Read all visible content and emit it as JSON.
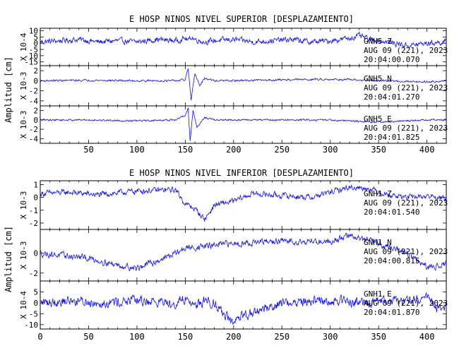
{
  "chart_data": [
    {
      "type": "line",
      "title": "E HOSP NINOS NIVEL SUPERIOR [DESPLAZAMIENTO]",
      "ylabel": "Amplitud [cm]",
      "xlim": [
        0,
        420
      ],
      "x_ticks": [
        50,
        100,
        150,
        200,
        250,
        300,
        350,
        400
      ],
      "x_tick_labels": [
        "50",
        "100",
        "150",
        "200",
        "250",
        "300",
        "350",
        "400"
      ],
      "line_color": "#1010ee",
      "series": [
        {
          "name": "GNH5 Z",
          "channel_label": "GNH5   Z",
          "date_label": "AUG 09 (221), 2023",
          "time_label": "20:04:00.070",
          "scale_label": "X 10-4",
          "ylim": [
            -18,
            12
          ],
          "y_ticks": [
            10,
            5,
            0,
            -5,
            -10,
            -15
          ],
          "y_tick_labels": [
            "10",
            "5",
            "0",
            "-5",
            "-10",
            "-15"
          ],
          "x": [
            0,
            20,
            40,
            60,
            80,
            100,
            120,
            140,
            150,
            153,
            156,
            160,
            165,
            170,
            180,
            200,
            220,
            240,
            260,
            280,
            300,
            320,
            330,
            340,
            360,
            380,
            400,
            420
          ],
          "y": [
            1,
            2,
            3,
            1,
            2,
            1,
            3,
            2,
            4,
            2,
            5,
            3,
            2,
            1,
            2,
            3,
            1,
            2,
            3,
            1,
            2,
            4,
            6,
            3,
            1,
            -2,
            0,
            1
          ],
          "noise": 3.5
        },
        {
          "name": "GNH5 N",
          "channel_label": "GNH5   N",
          "date_label": "AUG 09 (221), 2023",
          "time_label": "20:04:01.270",
          "scale_label": "X 10-3",
          "ylim": [
            -5,
            3
          ],
          "y_ticks": [
            2,
            0,
            -2,
            -4
          ],
          "y_tick_labels": [
            "2",
            "0",
            "-2",
            "-4"
          ],
          "x": [
            0,
            50,
            100,
            140,
            150,
            153,
            156,
            160,
            165,
            170,
            180,
            200,
            250,
            300,
            350,
            400,
            420
          ],
          "y": [
            0,
            0.1,
            0,
            0,
            0.2,
            2.5,
            -4,
            1.5,
            -1,
            0.5,
            0,
            0,
            0.2,
            0.3,
            0,
            -0.2,
            0
          ],
          "noise": 0.3
        },
        {
          "name": "GNH5 E",
          "channel_label": "GNH5   E",
          "date_label": "AUG 09 (221), 2023",
          "time_label": "20:04:01.825",
          "scale_label": "X 10-3",
          "ylim": [
            -5,
            3
          ],
          "y_ticks": [
            2,
            0,
            -2,
            -4
          ],
          "y_tick_labels": [
            "2",
            "0",
            "-2",
            "-4"
          ],
          "x": [
            0,
            50,
            100,
            140,
            150,
            153,
            155,
            158,
            162,
            170,
            180,
            200,
            250,
            300,
            350,
            400,
            420
          ],
          "y": [
            0,
            0,
            -0.2,
            0,
            1,
            2.5,
            -4.5,
            2,
            -1.5,
            0.5,
            0,
            0,
            0,
            0,
            -0.5,
            0,
            0
          ],
          "noise": 0.3
        }
      ]
    },
    {
      "type": "line",
      "title": "E HOSP NINOS NIVEL INFERIOR [DESPLAZAMIENTO]",
      "ylabel": "Amplitud [cm]",
      "xlim": [
        0,
        420
      ],
      "x_ticks": [
        0,
        50,
        100,
        150,
        200,
        250,
        300,
        350,
        400
      ],
      "x_tick_labels": [
        "0",
        "50",
        "100",
        "150",
        "200",
        "250",
        "300",
        "350",
        "400"
      ],
      "line_color": "#1010ee",
      "series": [
        {
          "name": "GNH1 Z",
          "channel_label": "GNH1   Z",
          "date_label": "AUG 09 (221), 2023",
          "time_label": "20:04:01.540",
          "scale_label": "X 10-3",
          "ylim": [
            -2.5,
            1.3
          ],
          "y_ticks": [
            1,
            0,
            -1,
            -2
          ],
          "y_tick_labels": [
            "1",
            "0",
            "-1",
            "-2"
          ],
          "x": [
            0,
            30,
            60,
            100,
            140,
            150,
            155,
            160,
            170,
            175,
            180,
            200,
            220,
            240,
            280,
            300,
            320,
            340,
            360,
            380,
            400,
            420
          ],
          "y": [
            0.3,
            0.4,
            0.2,
            0.5,
            0.6,
            -0.5,
            -0.7,
            -0.9,
            -1.7,
            -1.2,
            -0.6,
            -0.3,
            0.3,
            0.2,
            0,
            0.4,
            0.8,
            0.7,
            0.2,
            0,
            0.1,
            -0.1
          ],
          "noise": 0.35
        },
        {
          "name": "GNH1 N",
          "channel_label": "GNH1   N",
          "date_label": "AUG 09 (221), 2023",
          "time_label": "20:04:00.815",
          "scale_label": "X 10-3",
          "ylim": [
            -2.8,
            2.4
          ],
          "y_ticks": [
            0,
            -2
          ],
          "y_tick_labels": [
            "0",
            "-2"
          ],
          "x": [
            0,
            50,
            80,
            100,
            120,
            140,
            150,
            170,
            200,
            250,
            300,
            320,
            350,
            380,
            400,
            420
          ],
          "y": [
            0,
            -0.5,
            -1.2,
            -1.5,
            -0.8,
            0,
            0.5,
            0.7,
            1,
            1.2,
            1.2,
            1.8,
            1,
            0,
            -1.5,
            -1
          ],
          "noise": 0.5
        },
        {
          "name": "GNH1 E",
          "channel_label": "GNH1   E",
          "date_label": "AUG 09 (221), 2023",
          "time_label": "20:04:01.870",
          "scale_label": "X 10-4",
          "ylim": [
            -12,
            10
          ],
          "y_ticks": [
            5,
            0,
            -5,
            -10
          ],
          "y_tick_labels": [
            "5",
            "0",
            "-5",
            "-10"
          ],
          "x": [
            0,
            30,
            60,
            100,
            140,
            150,
            160,
            170,
            180,
            190,
            200,
            210,
            250,
            300,
            350,
            390,
            400,
            410,
            420
          ],
          "y": [
            0,
            1,
            0,
            1,
            0,
            2,
            -1,
            1,
            0,
            -5,
            -10,
            -6,
            0,
            1,
            0,
            2,
            3,
            -3,
            -1
          ],
          "noise": 3.5
        }
      ]
    }
  ]
}
